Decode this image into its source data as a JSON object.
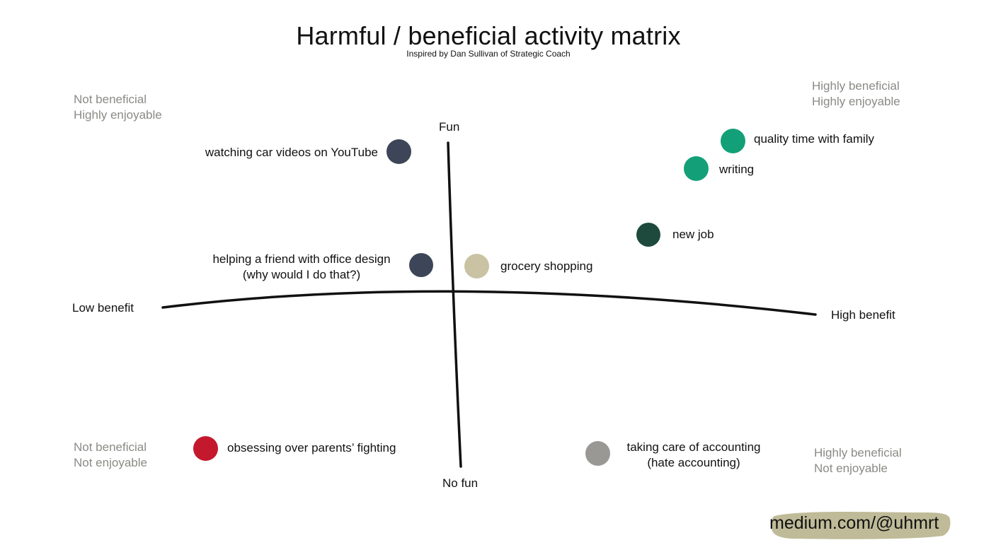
{
  "title": "Harmful / beneficial activity matrix",
  "subtitle": "Inspired by Dan Sullivan of Strategic Coach",
  "quadrants": {
    "top_left": [
      "Not beneficial",
      "Highly enjoyable"
    ],
    "top_right": [
      "Highly beneficial",
      "Highly enjoyable"
    ],
    "bottom_left": [
      "Not beneficial",
      "Not enjoyable"
    ],
    "bottom_right": [
      "Highly beneficial",
      "Not enjoyable"
    ]
  },
  "axes": {
    "top": "Fun",
    "bottom": "No fun",
    "left": "Low benefit",
    "right": "High benefit"
  },
  "items": {
    "youtube": {
      "lines": [
        "watching car videos on YouTube"
      ],
      "color": "#3d4658"
    },
    "family": {
      "lines": [
        "quality time with family"
      ],
      "color": "#13a079"
    },
    "writing": {
      "lines": [
        "writing"
      ],
      "color": "#13a079"
    },
    "new_job": {
      "lines": [
        "new job"
      ],
      "color": "#1e4a3e"
    },
    "office": {
      "lines": [
        "helping a friend with office design",
        "(why would I do that?)"
      ],
      "color": "#3d4658"
    },
    "grocery": {
      "lines": [
        "grocery shopping"
      ],
      "color": "#c9c3a4"
    },
    "parents": {
      "lines": [
        "obsessing over parents’ fighting"
      ],
      "color": "#c4182d"
    },
    "accounting": {
      "lines": [
        "taking care of accounting",
        "(hate accounting)"
      ],
      "color": "#999894"
    }
  },
  "colors": {
    "axis": "#111111",
    "quadrant_text": "#8a8a86",
    "footer_brush": "#bfbb98"
  },
  "footer": "medium.com/@uhmrt"
}
